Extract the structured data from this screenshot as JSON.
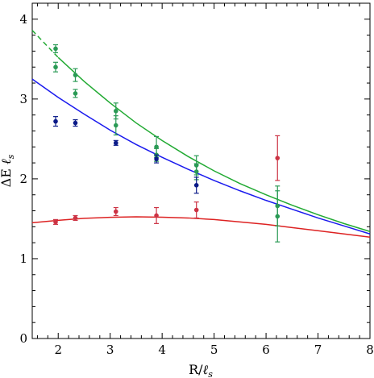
{
  "chart_data": {
    "type": "scatter",
    "xlabel": "R/ℓs",
    "ylabel": "ΔE ℓs",
    "xlim": [
      1.5,
      8
    ],
    "ylim": [
      0,
      4.2
    ],
    "x_ticks": [
      2,
      3,
      4,
      5,
      6,
      7,
      8
    ],
    "y_ticks": [
      0,
      1,
      2,
      3,
      4
    ],
    "grid": false,
    "legend": "none",
    "colors": {
      "green": "#22aa33",
      "blue": "#1a1aee",
      "red": "#dd2222",
      "green_points": "#2a9a55",
      "blue_points": "#0a1a88",
      "red_points": "#cc3344"
    },
    "series": [
      {
        "color": "green",
        "points": [
          {
            "x": 1.95,
            "y": 3.63,
            "err": 0.05
          },
          {
            "x": 1.95,
            "y": 3.4,
            "err": 0.06
          },
          {
            "x": 2.33,
            "y": 3.3,
            "err": 0.08
          },
          {
            "x": 2.33,
            "y": 3.07,
            "err": 0.05
          },
          {
            "x": 3.11,
            "y": 2.85,
            "err": 0.1
          },
          {
            "x": 3.11,
            "y": 2.67,
            "err": 0.12
          },
          {
            "x": 3.89,
            "y": 2.4,
            "err": 0.13
          },
          {
            "x": 3.89,
            "y": 2.3,
            "err": 0.08
          },
          {
            "x": 4.66,
            "y": 2.17,
            "err": 0.12
          },
          {
            "x": 4.66,
            "y": 2.09,
            "err": 0.1
          },
          {
            "x": 6.22,
            "y": 1.66,
            "err": 0.25
          },
          {
            "x": 6.22,
            "y": 1.53,
            "err": 0.32
          }
        ],
        "curve": [
          [
            1.5,
            3.86
          ],
          [
            2.0,
            3.52
          ],
          [
            2.5,
            3.22
          ],
          [
            3.0,
            2.95
          ],
          [
            3.5,
            2.7
          ],
          [
            4.0,
            2.48
          ],
          [
            4.5,
            2.28
          ],
          [
            5.0,
            2.1
          ],
          [
            5.5,
            1.94
          ],
          [
            6.0,
            1.8
          ],
          [
            6.5,
            1.67
          ],
          [
            7.0,
            1.55
          ],
          [
            7.5,
            1.44
          ],
          [
            8.0,
            1.34
          ]
        ],
        "dashed_until_x": 2.0
      },
      {
        "color": "blue",
        "points": [
          {
            "x": 1.95,
            "y": 2.72,
            "err": 0.06
          },
          {
            "x": 2.33,
            "y": 2.7,
            "err": 0.04
          },
          {
            "x": 3.11,
            "y": 2.45,
            "err": 0.03
          },
          {
            "x": 3.89,
            "y": 2.25,
            "err": 0.05
          },
          {
            "x": 4.66,
            "y": 1.92,
            "err": 0.1
          }
        ],
        "curve": [
          [
            1.5,
            3.25
          ],
          [
            2.0,
            3.02
          ],
          [
            2.5,
            2.81
          ],
          [
            3.0,
            2.61
          ],
          [
            3.5,
            2.43
          ],
          [
            4.0,
            2.27
          ],
          [
            4.5,
            2.12
          ],
          [
            5.0,
            1.98
          ],
          [
            5.5,
            1.85
          ],
          [
            6.0,
            1.73
          ],
          [
            6.5,
            1.62
          ],
          [
            7.0,
            1.51
          ],
          [
            7.5,
            1.41
          ],
          [
            8.0,
            1.31
          ]
        ]
      },
      {
        "color": "red",
        "points": [
          {
            "x": 1.95,
            "y": 1.46,
            "err": 0.03
          },
          {
            "x": 2.33,
            "y": 1.51,
            "err": 0.03
          },
          {
            "x": 3.11,
            "y": 1.59,
            "err": 0.05
          },
          {
            "x": 3.89,
            "y": 1.54,
            "err": 0.1
          },
          {
            "x": 4.66,
            "y": 1.61,
            "err": 0.1
          },
          {
            "x": 6.22,
            "y": 2.26,
            "err": 0.28
          }
        ],
        "curve": [
          [
            1.5,
            1.45
          ],
          [
            2.0,
            1.48
          ],
          [
            2.5,
            1.505
          ],
          [
            3.0,
            1.518
          ],
          [
            3.5,
            1.524
          ],
          [
            4.0,
            1.52
          ],
          [
            4.5,
            1.51
          ],
          [
            5.0,
            1.49
          ],
          [
            5.5,
            1.46
          ],
          [
            6.0,
            1.43
          ],
          [
            6.5,
            1.39
          ],
          [
            7.0,
            1.35
          ],
          [
            7.5,
            1.31
          ],
          [
            8.0,
            1.27
          ]
        ]
      }
    ]
  }
}
